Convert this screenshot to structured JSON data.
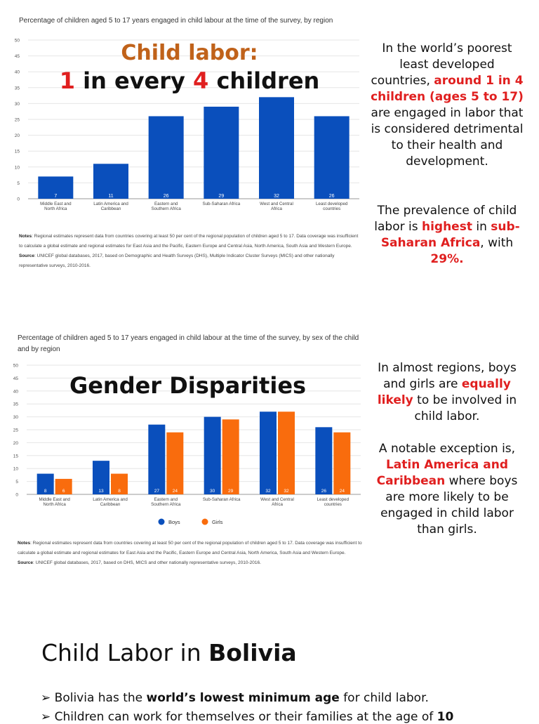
{
  "slide1": {
    "chart_caption": "Percentage of children aged 5 to 17 years engaged in child labour at the time of the survey, by region",
    "title_line1": "Child labor:",
    "title_num1": "1",
    "title_mid": " in every ",
    "title_num2": "4",
    "title_end": " children",
    "notes_label": "Notes",
    "notes_text": ": Regional estimates represent data from countries covering at least 50 per cent of the regional population of children aged 5 to 17. Data coverage was insufficient to calculate a global estimate and regional estimates for East Asia and the Pacific, Eastern Europe and Central Asia, North America, South Asia and Western Europe.",
    "source_label": "Source",
    "source_text": ": UNICEF global databases, 2017, based on Demographic and Health Surveys (DHS), Multiple Indicator Cluster Surveys (MICS) and other nationally representative surveys, 2010-2016.",
    "side_a": "In the world’s poorest least developed countries, ",
    "side_b": "around 1 in 4 children (ages 5 to 17)",
    "side_c": " are engaged in labor that is considered detrimental to their health and development.",
    "side_d": "The prevalence of child labor is ",
    "side_e": "highest",
    "side_f": " in ",
    "side_g": "sub-Saharan Africa",
    "side_h": ", with ",
    "side_i": "29%."
  },
  "slide2": {
    "chart_caption": "Percentage of children aged 5 to 17 years engaged in child labour at the time of the survey, by sex of the child and by region",
    "title": "Gender Disparities",
    "notes_label": "Notes",
    "notes_text": ": Regional estimates represent data from countries covering at least 50 per cent of the regional population of children aged 5 to 17. Data coverage was insufficient to calculate a global estimate and regional estimates for East Asia and the Pacific, Eastern Europe and Central Asia, North America, South Asia and Western Europe.",
    "source_label": "Source",
    "source_text": ": UNICEF global databases, 2017, based on DHS, MICS and other nationally representative surveys, 2010-2016.",
    "side_a": "In almost regions, boys and girls are ",
    "side_b": "equally likely",
    "side_c": " to be involved in child labor.",
    "side_d": "A notable exception is, ",
    "side_e": "Latin America and Caribbean",
    "side_f": " where boys are more likely to be engaged in child labor than girls."
  },
  "slide3": {
    "title_a": "Child Labor in ",
    "title_b": "Bolivia",
    "bullet1_a": "Bolivia has the ",
    "bullet1_b": "world’s lowest minimum age",
    "bullet1_c": " for child labor.",
    "bullet2_a": "Children can work for themselves or their families at the age of ",
    "bullet2_b": "10"
  },
  "colors": {
    "bar": "#0a4fbc",
    "boys": "#0a4fbc",
    "girls": "#f96c0d",
    "red": "#e01f1f",
    "brown": "#c0621a"
  },
  "chart_data": [
    {
      "type": "bar",
      "title": "Percentage of children aged 5 to 17 years engaged in child labour at the time of the survey, by region",
      "categories": [
        "Middle East and North Africa",
        "Latin America and Caribbean",
        "Eastern and Southern Africa",
        "Sub-Saharan Africa",
        "West and Central Africa",
        "Least developed countries"
      ],
      "values": [
        7,
        11,
        26,
        29,
        32,
        26
      ],
      "yticks": [
        0,
        5,
        10,
        15,
        20,
        25,
        30,
        35,
        40,
        45,
        50
      ],
      "ylim": [
        0,
        50
      ],
      "grid": true
    },
    {
      "type": "bar",
      "title": "Percentage of children aged 5 to 17 years engaged in child labour at the time of the survey, by sex of the child and by region",
      "categories": [
        "Middle East and North Africa",
        "Latin America and Caribbean",
        "Eastern and Southern Africa",
        "Sub-Saharan Africa",
        "West and Central Africa",
        "Least developed countries"
      ],
      "series": [
        {
          "name": "Boys",
          "values": [
            8,
            13,
            27,
            30,
            32,
            26
          ]
        },
        {
          "name": "Girls",
          "values": [
            6,
            8,
            24,
            29,
            32,
            24
          ]
        }
      ],
      "yticks": [
        0,
        5,
        10,
        15,
        20,
        25,
        30,
        35,
        40,
        45,
        50
      ],
      "ylim": [
        0,
        50
      ],
      "legend": "bottom-center",
      "grid": true
    }
  ]
}
